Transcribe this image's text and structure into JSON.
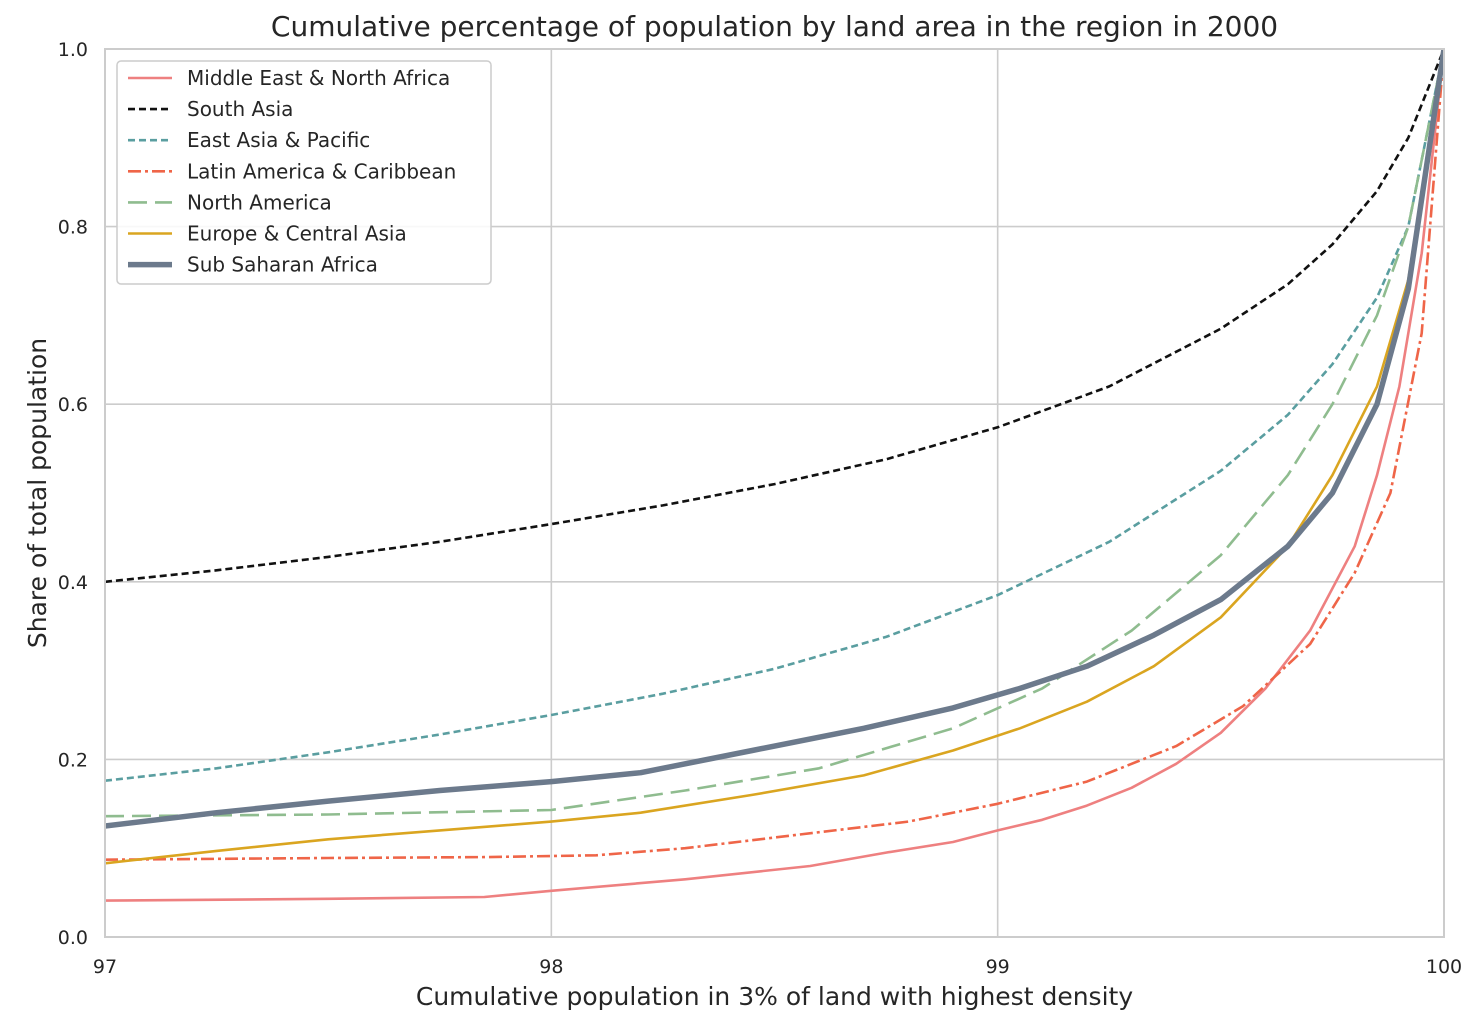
{
  "chart_data": {
    "type": "line",
    "title": "Cumulative percentage of population by land area in the region in 2000",
    "xlabel": "Cumulative population in 3% of land with highest density",
    "ylabel": "Share of total population",
    "xlim": [
      97,
      100
    ],
    "ylim": [
      0.0,
      1.0
    ],
    "xticks": [
      97,
      98,
      99,
      100
    ],
    "xtick_labels": [
      "97",
      "98",
      "99",
      "100"
    ],
    "yticks": [
      0.0,
      0.2,
      0.4,
      0.6,
      0.8,
      1.0
    ],
    "ytick_labels": [
      "0.0",
      "0.2",
      "0.4",
      "0.6",
      "0.8",
      "1.0"
    ],
    "grid": true,
    "legend_position": "top-left",
    "series": [
      {
        "name": "Middle East & North Africa",
        "color": "#ee8080",
        "line_style": "solid",
        "x": [
          97,
          97.5,
          97.85,
          98.0,
          98.3,
          98.58,
          98.75,
          98.9,
          99.0,
          99.1,
          99.2,
          99.3,
          99.4,
          99.5,
          99.6,
          99.7,
          99.8,
          99.85,
          99.9,
          99.95,
          100
        ],
        "y": [
          0.041,
          0.043,
          0.045,
          0.052,
          0.065,
          0.08,
          0.095,
          0.107,
          0.12,
          0.132,
          0.148,
          0.168,
          0.195,
          0.23,
          0.28,
          0.345,
          0.44,
          0.52,
          0.62,
          0.77,
          1.0
        ]
      },
      {
        "name": "South Asia",
        "color": "#111111",
        "line_style": "dashed",
        "x": [
          97,
          97.25,
          97.5,
          97.75,
          98.0,
          98.25,
          98.5,
          98.75,
          99.0,
          99.25,
          99.5,
          99.65,
          99.75,
          99.85,
          99.92,
          100
        ],
        "y": [
          0.4,
          0.413,
          0.428,
          0.445,
          0.465,
          0.486,
          0.51,
          0.538,
          0.574,
          0.62,
          0.685,
          0.735,
          0.78,
          0.84,
          0.9,
          1.0
        ]
      },
      {
        "name": "East Asia & Pacific",
        "color": "#5a9ea0",
        "line_style": "dashed",
        "x": [
          97,
          97.25,
          97.5,
          97.75,
          98.0,
          98.25,
          98.5,
          98.75,
          99.0,
          99.25,
          99.5,
          99.65,
          99.75,
          99.85,
          99.92,
          100
        ],
        "y": [
          0.176,
          0.19,
          0.208,
          0.228,
          0.25,
          0.274,
          0.302,
          0.338,
          0.385,
          0.445,
          0.525,
          0.588,
          0.645,
          0.72,
          0.8,
          1.0
        ]
      },
      {
        "name": "Latin America & Caribbean",
        "color": "#ef6548",
        "line_style": "dashdot",
        "x": [
          97,
          97.5,
          97.85,
          98.1,
          98.3,
          98.6,
          98.8,
          99.0,
          99.2,
          99.4,
          99.55,
          99.7,
          99.8,
          99.88,
          99.95,
          100
        ],
        "y": [
          0.087,
          0.089,
          0.09,
          0.092,
          0.1,
          0.118,
          0.13,
          0.15,
          0.175,
          0.215,
          0.26,
          0.33,
          0.41,
          0.5,
          0.68,
          1.0
        ]
      },
      {
        "name": "North America",
        "color": "#8fbc8f",
        "line_style": "longdash",
        "x": [
          97,
          97.5,
          98.0,
          98.3,
          98.6,
          98.9,
          99.1,
          99.3,
          99.5,
          99.65,
          99.75,
          99.85,
          99.92,
          100
        ],
        "y": [
          0.136,
          0.138,
          0.143,
          0.165,
          0.19,
          0.235,
          0.28,
          0.345,
          0.43,
          0.52,
          0.6,
          0.7,
          0.8,
          1.0
        ]
      },
      {
        "name": "Europe & Central Asia",
        "color": "#daa520",
        "line_style": "solid",
        "x": [
          97,
          97.25,
          97.5,
          97.75,
          98.0,
          98.2,
          98.45,
          98.7,
          98.9,
          99.05,
          99.2,
          99.35,
          99.5,
          99.65,
          99.75,
          99.85,
          99.92,
          100
        ],
        "y": [
          0.083,
          0.097,
          0.11,
          0.12,
          0.13,
          0.14,
          0.16,
          0.182,
          0.21,
          0.235,
          0.265,
          0.305,
          0.36,
          0.44,
          0.52,
          0.62,
          0.74,
          1.0
        ]
      },
      {
        "name": "Sub Saharan Africa",
        "color": "#6c7a8c",
        "line_style": "solid-thick",
        "x": [
          97,
          97.25,
          97.5,
          97.75,
          98.0,
          98.2,
          98.45,
          98.7,
          98.9,
          99.05,
          99.2,
          99.35,
          99.5,
          99.65,
          99.75,
          99.85,
          99.92,
          100
        ],
        "y": [
          0.125,
          0.14,
          0.153,
          0.165,
          0.175,
          0.185,
          0.21,
          0.235,
          0.258,
          0.28,
          0.305,
          0.34,
          0.38,
          0.44,
          0.5,
          0.6,
          0.73,
          1.0
        ]
      }
    ]
  }
}
